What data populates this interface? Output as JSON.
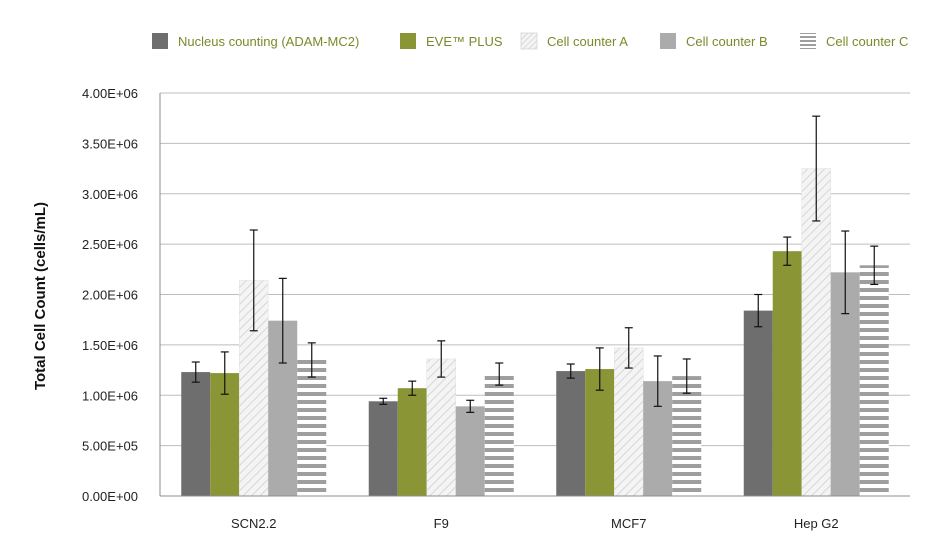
{
  "chart_data": {
    "type": "bar",
    "ylabel": "Total Cell Count (cells/mL)",
    "ylim": [
      0,
      4000000
    ],
    "yticks": [
      0,
      500000,
      1000000,
      1500000,
      2000000,
      2500000,
      3000000,
      3500000,
      4000000
    ],
    "ytick_labels": [
      "0.00E+00",
      "5.00E+05",
      "1.00E+06",
      "1.50E+06",
      "2.00E+06",
      "2.50E+06",
      "3.00E+06",
      "3.50E+06",
      "4.00E+06"
    ],
    "grid": true,
    "legend_position": "top",
    "categories": [
      "SCN2.2",
      "F9",
      "MCF7",
      "Hep G2"
    ],
    "series": [
      {
        "name": "Nucleus counting (ADAM-MC2)",
        "pattern": "solid",
        "color": "#6e6e6e",
        "values": [
          1230000,
          940000,
          1240000,
          1840000
        ],
        "errors": [
          100000,
          30000,
          70000,
          160000
        ]
      },
      {
        "name": "EVE™ PLUS",
        "pattern": "solid",
        "color": "#8a9636",
        "values": [
          1220000,
          1070000,
          1260000,
          2430000
        ],
        "errors": [
          210000,
          70000,
          210000,
          140000
        ]
      },
      {
        "name": "Cell counter A",
        "pattern": "diagonal",
        "color": "#efefef",
        "values": [
          2140000,
          1360000,
          1470000,
          3250000
        ],
        "errors": [
          500000,
          180000,
          200000,
          520000
        ]
      },
      {
        "name": "Cell counter B",
        "pattern": "solid",
        "color": "#ababab",
        "values": [
          1740000,
          890000,
          1140000,
          2220000
        ],
        "errors": [
          420000,
          60000,
          250000,
          410000
        ]
      },
      {
        "name": "Cell counter C",
        "pattern": "horizontal",
        "color": "#a3a3a3",
        "values": [
          1350000,
          1210000,
          1190000,
          2290000
        ],
        "errors": [
          170000,
          110000,
          170000,
          190000
        ]
      }
    ]
  }
}
